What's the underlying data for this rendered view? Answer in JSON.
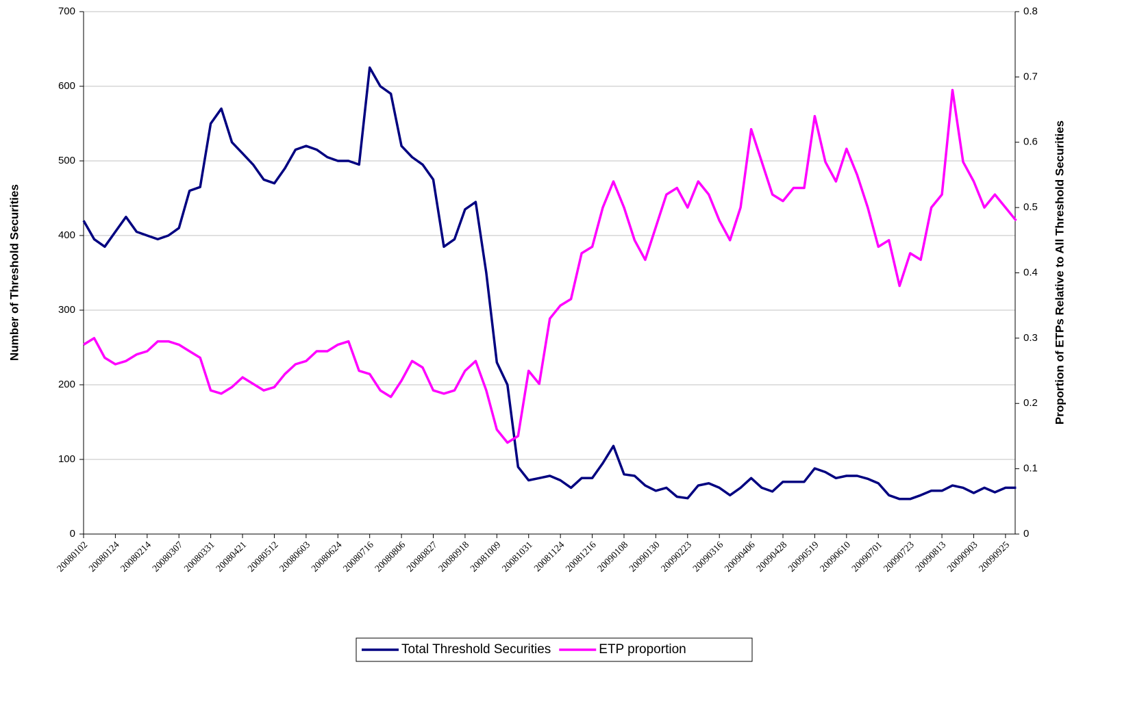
{
  "chart_data": {
    "type": "line",
    "y_label": "Number of Threshold Securities",
    "y2_label": "Proportion of ETPs Relative to All Threshold Securities",
    "categories": [
      "20080102",
      null,
      null,
      "20080124",
      null,
      null,
      "20080214",
      null,
      null,
      "20080307",
      null,
      null,
      "20080331",
      null,
      null,
      "20080421",
      null,
      null,
      "20080512",
      null,
      null,
      "20080603",
      null,
      null,
      "20080624",
      null,
      null,
      "20080716",
      null,
      null,
      "20080806",
      null,
      null,
      "20080827",
      null,
      null,
      "20080918",
      null,
      null,
      "20081009",
      null,
      null,
      "20081031",
      null,
      null,
      "20081124",
      null,
      null,
      "20081216",
      null,
      null,
      "20090108",
      null,
      null,
      "20090130",
      null,
      null,
      "20090223",
      null,
      null,
      "20090316",
      null,
      null,
      "20090406",
      null,
      null,
      "20090428",
      null,
      null,
      "20090519",
      null,
      null,
      "20090610",
      null,
      null,
      "20090701",
      null,
      null,
      "20090723",
      null,
      null,
      "20090813",
      null,
      null,
      "20090903",
      null,
      null,
      "20090925",
      null
    ],
    "series": [
      {
        "name": "Total Threshold Securities",
        "color": "#000080",
        "values": [
          420,
          395,
          385,
          405,
          425,
          405,
          400,
          395,
          400,
          410,
          460,
          465,
          550,
          570,
          525,
          510,
          495,
          475,
          470,
          490,
          515,
          520,
          515,
          505,
          500,
          500,
          495,
          625,
          600,
          590,
          520,
          505,
          495,
          475,
          385,
          395,
          435,
          445,
          350,
          230,
          200,
          90,
          72,
          75,
          78,
          72,
          62,
          75,
          75,
          95,
          118,
          80,
          78,
          65,
          58,
          62,
          50,
          48,
          65,
          68,
          62,
          52,
          62,
          75,
          62,
          57,
          70,
          70,
          70,
          88,
          83,
          75,
          78,
          78,
          74,
          68,
          52,
          47,
          47,
          52,
          58,
          58,
          65,
          62,
          55,
          62,
          56,
          62,
          62
        ]
      },
      {
        "name": "ETP proportion",
        "color": "#ff00ff",
        "axis": "y2",
        "values": [
          0.29,
          0.3,
          0.27,
          0.26,
          0.265,
          0.275,
          0.28,
          0.295,
          0.295,
          0.29,
          0.28,
          0.27,
          0.22,
          0.215,
          0.225,
          0.24,
          0.23,
          0.22,
          0.225,
          0.245,
          0.26,
          0.265,
          0.28,
          0.28,
          0.29,
          0.295,
          0.25,
          0.245,
          0.22,
          0.21,
          0.235,
          0.265,
          0.255,
          0.22,
          0.215,
          0.22,
          0.25,
          0.265,
          0.22,
          0.16,
          0.14,
          0.15,
          0.25,
          0.23,
          0.33,
          0.35,
          0.36,
          0.43,
          0.44,
          0.5,
          0.54,
          0.5,
          0.45,
          0.42,
          0.47,
          0.52,
          0.53,
          0.5,
          0.54,
          0.52,
          0.48,
          0.45,
          0.5,
          0.62,
          0.57,
          0.52,
          0.51,
          0.53,
          0.53,
          0.64,
          0.57,
          0.54,
          0.59,
          0.55,
          0.5,
          0.44,
          0.45,
          0.38,
          0.43,
          0.42,
          0.5,
          0.52,
          0.68,
          0.57,
          0.54,
          0.5,
          0.52,
          0.5,
          0.48
        ]
      }
    ],
    "ylim": [
      0,
      700
    ],
    "yticks": [
      0,
      100,
      200,
      300,
      400,
      500,
      600,
      700
    ],
    "y2lim": [
      0,
      0.8
    ],
    "y2ticks": [
      0,
      0.1,
      0.2,
      0.3,
      0.4,
      0.5,
      0.6,
      0.7,
      0.8
    ],
    "grid": true,
    "legend": "bottom"
  }
}
